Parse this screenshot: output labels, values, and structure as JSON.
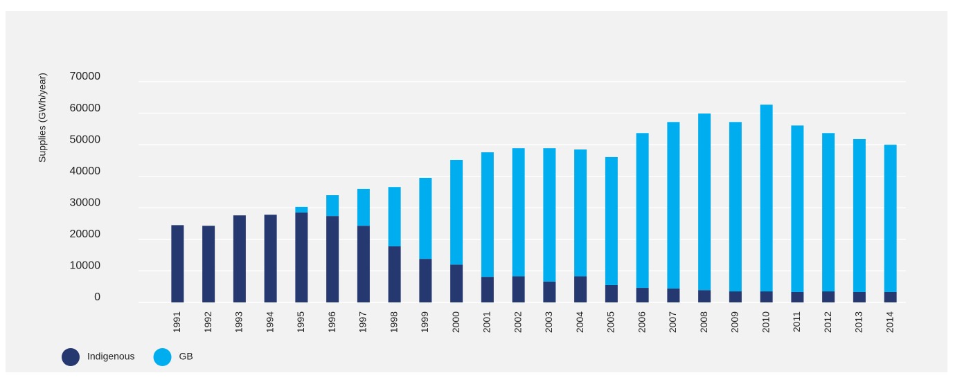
{
  "chart_data": {
    "type": "stacked_bar",
    "y_label": "Supplies (GWh/year)",
    "categories": [
      "1991",
      "1992",
      "1993",
      "1994",
      "1995",
      "1996",
      "1997",
      "1998",
      "1999",
      "2000",
      "2001",
      "2002",
      "2003",
      "2004",
      "2005",
      "2006",
      "2007",
      "2008",
      "2009",
      "2010",
      "2011",
      "2012",
      "2013",
      "2014"
    ],
    "series": [
      {
        "name": "Indigenous",
        "color": "#253870",
        "values": [
          24500,
          24300,
          27600,
          27800,
          28500,
          27400,
          24300,
          17800,
          13800,
          12000,
          8100,
          8300,
          6600,
          8300,
          5500,
          4600,
          4400,
          3900,
          3500,
          3500,
          3300,
          3500,
          3300,
          3300
        ]
      },
      {
        "name": "GB",
        "color": "#00aeef",
        "values": [
          0,
          0,
          0,
          0,
          1800,
          6600,
          11700,
          18800,
          25700,
          33200,
          39500,
          40600,
          42300,
          40200,
          40600,
          49100,
          52800,
          56000,
          53700,
          59200,
          52800,
          50200,
          48500,
          46700
        ]
      }
    ],
    "ylim": [
      0,
      70000
    ],
    "yticks": [
      0,
      10000,
      20000,
      30000,
      40000,
      50000,
      60000,
      70000
    ],
    "grid": true,
    "legend": "bottom-left"
  }
}
